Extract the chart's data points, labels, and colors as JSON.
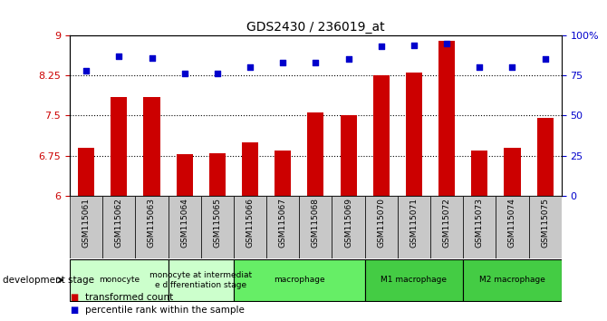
{
  "title": "GDS2430 / 236019_at",
  "samples": [
    "GSM115061",
    "GSM115062",
    "GSM115063",
    "GSM115064",
    "GSM115065",
    "GSM115066",
    "GSM115067",
    "GSM115068",
    "GSM115069",
    "GSM115070",
    "GSM115071",
    "GSM115072",
    "GSM115073",
    "GSM115074",
    "GSM115075"
  ],
  "bar_values": [
    6.9,
    7.85,
    7.85,
    6.78,
    6.8,
    7.0,
    6.85,
    7.55,
    7.5,
    8.25,
    8.3,
    8.9,
    6.85,
    6.9,
    7.45
  ],
  "dot_values": [
    78,
    87,
    86,
    76,
    76,
    80,
    83,
    83,
    85,
    93,
    94,
    95,
    80,
    80,
    85
  ],
  "bar_color": "#CC0000",
  "dot_color": "#0000CC",
  "ylim_left": [
    6,
    9
  ],
  "ylim_right": [
    0,
    100
  ],
  "yticks_left": [
    6,
    6.75,
    7.5,
    8.25,
    9
  ],
  "yticks_right": [
    0,
    25,
    50,
    75,
    100
  ],
  "ytick_labels_right": [
    "0",
    "25",
    "50",
    "75",
    "100%"
  ],
  "hlines": [
    6.75,
    7.5,
    8.25
  ],
  "groups_info": [
    {
      "label": "monocyte",
      "start": 0,
      "end": 2,
      "color": "#ccffcc"
    },
    {
      "label": "monocyte at intermediat\ne differentiation stage",
      "start": 3,
      "end": 4,
      "color": "#ccffcc"
    },
    {
      "label": "macrophage",
      "start": 5,
      "end": 8,
      "color": "#66ee66"
    },
    {
      "label": "M1 macrophage",
      "start": 9,
      "end": 11,
      "color": "#44cc44"
    },
    {
      "label": "M2 macrophage",
      "start": 12,
      "end": 14,
      "color": "#44cc44"
    }
  ],
  "legend_items": [
    {
      "label": "transformed count",
      "color": "#CC0000"
    },
    {
      "label": "percentile rank within the sample",
      "color": "#0000CC"
    }
  ],
  "dev_stage_label": "development stage",
  "background_color": "#ffffff",
  "plot_bg_color": "#ffffff",
  "tick_label_color_left": "#CC0000",
  "tick_label_color_right": "#0000CC",
  "sample_label_bg": "#c8c8c8"
}
